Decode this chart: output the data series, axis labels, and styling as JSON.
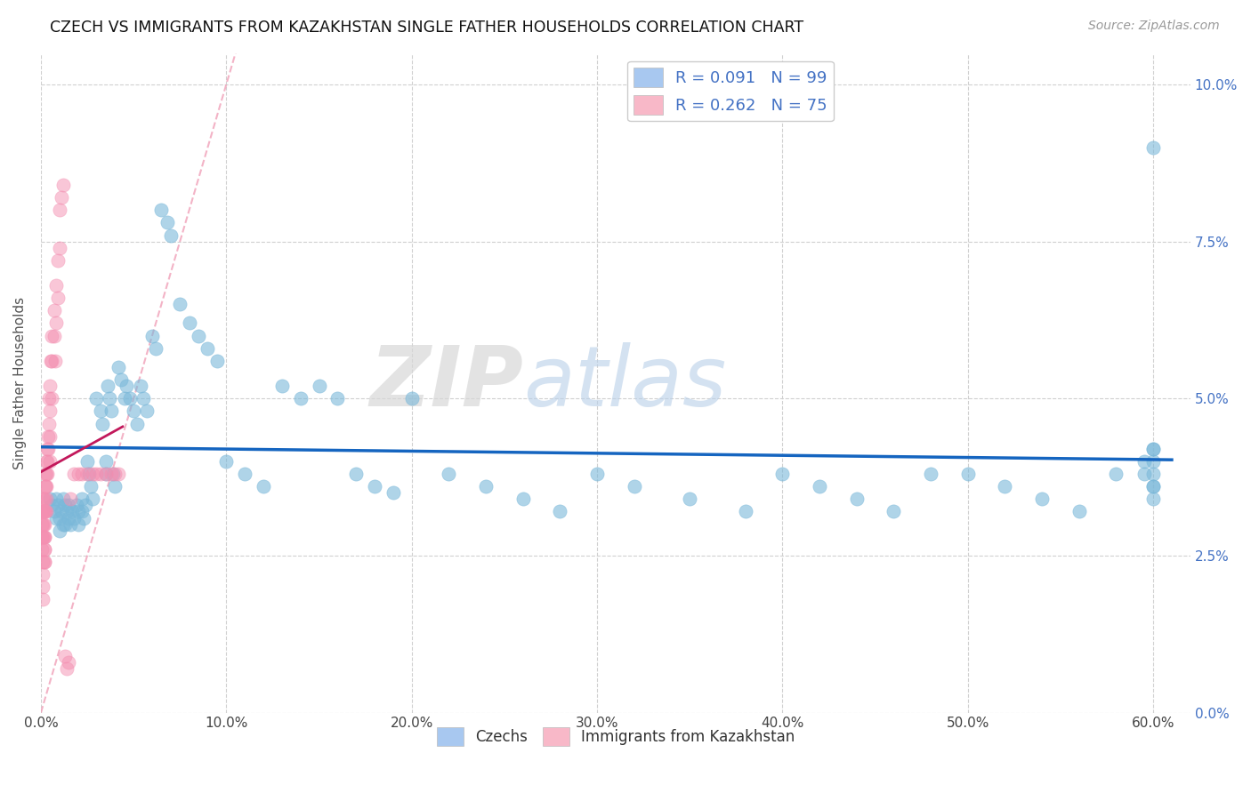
{
  "title": "CZECH VS IMMIGRANTS FROM KAZAKHSTAN SINGLE FATHER HOUSEHOLDS CORRELATION CHART",
  "source": "Source: ZipAtlas.com",
  "ylabel_label": "Single Father Households",
  "legend_entries": [
    {
      "label": "R = 0.091   N = 99",
      "color": "#a8c8f0"
    },
    {
      "label": "R = 0.262   N = 75",
      "color": "#f8b8c8"
    }
  ],
  "legend_labels_bottom": [
    "Czechs",
    "Immigrants from Kazakhstan"
  ],
  "blue_color": "#7ab8d9",
  "pink_color": "#f48fb1",
  "trendline_blue_color": "#1565c0",
  "trendline_pink_color": "#c2185b",
  "diag_color": "#f0a0b8",
  "watermark_zip": "ZIP",
  "watermark_atlas": "atlas",
  "xlim": [
    0.0,
    0.62
  ],
  "ylim": [
    0.0,
    0.105
  ],
  "xtick_vals": [
    0.0,
    0.1,
    0.2,
    0.3,
    0.4,
    0.5,
    0.6
  ],
  "xtick_labels": [
    "0.0%",
    "10.0%",
    "20.0%",
    "30.0%",
    "40.0%",
    "50.0%",
    "60.0%"
  ],
  "ytick_vals": [
    0.0,
    0.025,
    0.05,
    0.075,
    0.1
  ],
  "ytick_labels": [
    "0.0%",
    "2.5%",
    "5.0%",
    "7.5%",
    "10.0%"
  ],
  "figsize": [
    14.06,
    8.92
  ],
  "blue_x": [
    0.005,
    0.006,
    0.007,
    0.008,
    0.008,
    0.009,
    0.01,
    0.01,
    0.011,
    0.012,
    0.012,
    0.013,
    0.013,
    0.014,
    0.015,
    0.015,
    0.016,
    0.017,
    0.018,
    0.019,
    0.02,
    0.02,
    0.022,
    0.022,
    0.023,
    0.024,
    0.025,
    0.026,
    0.027,
    0.028,
    0.03,
    0.032,
    0.033,
    0.035,
    0.035,
    0.036,
    0.037,
    0.038,
    0.039,
    0.04,
    0.042,
    0.043,
    0.045,
    0.046,
    0.048,
    0.05,
    0.052,
    0.054,
    0.055,
    0.057,
    0.06,
    0.062,
    0.065,
    0.068,
    0.07,
    0.075,
    0.08,
    0.085,
    0.09,
    0.095,
    0.1,
    0.11,
    0.12,
    0.13,
    0.14,
    0.15,
    0.16,
    0.17,
    0.18,
    0.19,
    0.2,
    0.22,
    0.24,
    0.26,
    0.28,
    0.3,
    0.32,
    0.35,
    0.38,
    0.4,
    0.42,
    0.44,
    0.46,
    0.48,
    0.5,
    0.52,
    0.54,
    0.56,
    0.58,
    0.595,
    0.595,
    0.6,
    0.6,
    0.6,
    0.6,
    0.6,
    0.6,
    0.6,
    0.6
  ],
  "blue_y": [
    0.034,
    0.033,
    0.032,
    0.034,
    0.031,
    0.033,
    0.031,
    0.029,
    0.032,
    0.03,
    0.034,
    0.033,
    0.03,
    0.032,
    0.031,
    0.033,
    0.03,
    0.032,
    0.031,
    0.033,
    0.032,
    0.03,
    0.034,
    0.032,
    0.031,
    0.033,
    0.04,
    0.038,
    0.036,
    0.034,
    0.05,
    0.048,
    0.046,
    0.04,
    0.038,
    0.052,
    0.05,
    0.048,
    0.038,
    0.036,
    0.055,
    0.053,
    0.05,
    0.052,
    0.05,
    0.048,
    0.046,
    0.052,
    0.05,
    0.048,
    0.06,
    0.058,
    0.08,
    0.078,
    0.076,
    0.065,
    0.062,
    0.06,
    0.058,
    0.056,
    0.04,
    0.038,
    0.036,
    0.052,
    0.05,
    0.052,
    0.05,
    0.038,
    0.036,
    0.035,
    0.05,
    0.038,
    0.036,
    0.034,
    0.032,
    0.038,
    0.036,
    0.034,
    0.032,
    0.038,
    0.036,
    0.034,
    0.032,
    0.038,
    0.038,
    0.036,
    0.034,
    0.032,
    0.038,
    0.04,
    0.038,
    0.036,
    0.034,
    0.042,
    0.042,
    0.04,
    0.038,
    0.036,
    0.09
  ],
  "pink_x": [
    0.0005,
    0.0006,
    0.0007,
    0.0008,
    0.0009,
    0.001,
    0.001,
    0.001,
    0.001,
    0.001,
    0.0012,
    0.0013,
    0.0014,
    0.0015,
    0.0015,
    0.0016,
    0.0017,
    0.0018,
    0.0019,
    0.002,
    0.002,
    0.002,
    0.002,
    0.002,
    0.002,
    0.0022,
    0.0023,
    0.0025,
    0.0025,
    0.003,
    0.003,
    0.003,
    0.003,
    0.003,
    0.0032,
    0.0033,
    0.0035,
    0.004,
    0.004,
    0.0042,
    0.0045,
    0.005,
    0.005,
    0.005,
    0.005,
    0.0055,
    0.006,
    0.006,
    0.006,
    0.007,
    0.007,
    0.0075,
    0.008,
    0.008,
    0.009,
    0.009,
    0.01,
    0.01,
    0.011,
    0.012,
    0.013,
    0.014,
    0.015,
    0.016,
    0.018,
    0.02,
    0.022,
    0.025,
    0.028,
    0.03,
    0.032,
    0.035,
    0.038,
    0.04,
    0.042
  ],
  "pink_y": [
    0.03,
    0.028,
    0.026,
    0.024,
    0.022,
    0.032,
    0.03,
    0.028,
    0.02,
    0.018,
    0.034,
    0.032,
    0.028,
    0.034,
    0.03,
    0.032,
    0.028,
    0.026,
    0.024,
    0.034,
    0.032,
    0.03,
    0.028,
    0.026,
    0.024,
    0.036,
    0.032,
    0.038,
    0.036,
    0.04,
    0.038,
    0.036,
    0.034,
    0.032,
    0.042,
    0.04,
    0.038,
    0.044,
    0.042,
    0.046,
    0.05,
    0.052,
    0.048,
    0.044,
    0.04,
    0.056,
    0.06,
    0.056,
    0.05,
    0.064,
    0.06,
    0.056,
    0.068,
    0.062,
    0.072,
    0.066,
    0.08,
    0.074,
    0.082,
    0.084,
    0.009,
    0.007,
    0.008,
    0.034,
    0.038,
    0.038,
    0.038,
    0.038,
    0.038,
    0.038,
    0.038,
    0.038,
    0.038,
    0.038,
    0.038
  ]
}
